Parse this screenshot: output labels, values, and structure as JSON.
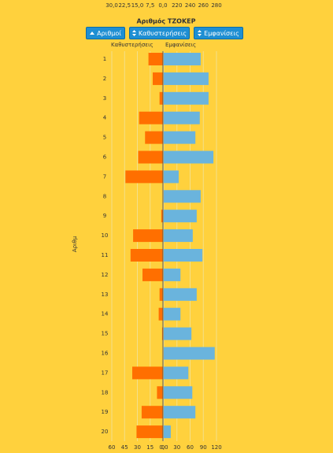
{
  "chart_data": {
    "type": "butterfly",
    "title": "Αριθμός ΤΖΟΚΕΡ",
    "buttons": [
      "Αριθμοί",
      "Καθυστερήσεις",
      "Εμφανίσεις"
    ],
    "ylabel": "Αριθμ",
    "categories": [
      "1",
      "2",
      "3",
      "4",
      "5",
      "6",
      "7",
      "8",
      "9",
      "10",
      "11",
      "12",
      "13",
      "14",
      "15",
      "16",
      "17",
      "18",
      "19",
      "20"
    ],
    "series": [
      {
        "name": "Καθυστερήσεις",
        "color": "#ff6f00",
        "side": "left",
        "values": [
          17,
          12,
          4,
          28,
          21,
          29,
          44,
          0,
          2,
          35,
          38,
          24,
          4,
          5,
          1,
          0,
          36,
          7,
          25,
          31
        ],
        "xlim": [
          0,
          60
        ],
        "xticks": [
          60,
          45,
          30,
          15,
          0
        ],
        "x2lim": [
          0,
          30
        ],
        "x2ticks": [
          {
            "value": 30,
            "label": "30,0"
          },
          {
            "value": 22.5,
            "label": "22,5"
          },
          {
            "value": 15,
            "label": "15,0"
          },
          {
            "value": 7.5,
            "label": "7,5"
          },
          {
            "value": 0,
            "label": "0,0"
          }
        ]
      },
      {
        "name": "Εμφανίσεις",
        "color": "#6ab4dd",
        "side": "right",
        "values": [
          84,
          102,
          102,
          82,
          72,
          113,
          34,
          84,
          75,
          66,
          88,
          38,
          75,
          38,
          63,
          116,
          56,
          65,
          72,
          16
        ],
        "xlim": [
          0,
          120
        ],
        "xticks": [
          {
            "value": 0,
            "label": "0,0"
          },
          30,
          60,
          90,
          120
        ],
        "x2lim": [
          200,
          280
        ],
        "x2ticks": [
          220,
          240,
          260,
          280
        ]
      }
    ],
    "grid": true
  }
}
